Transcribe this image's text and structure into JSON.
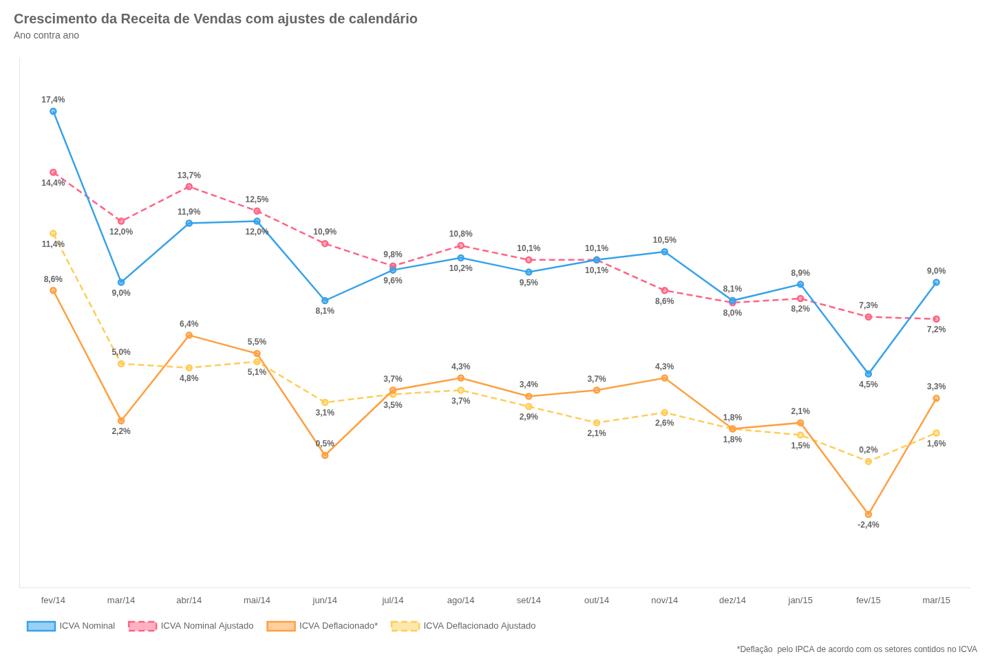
{
  "chart_data": {
    "type": "line",
    "title": "Crescimento da Receita de Vendas com ajustes de calendário",
    "subtitle": "Ano contra ano",
    "footnote": "*Deflação  pelo IPCA de acordo com os setores contidos no ICVA",
    "categories": [
      "fev/14",
      "mar/14",
      "abr/14",
      "mai/14",
      "jun/14",
      "jul/14",
      "ago/14",
      "set/14",
      "out/14",
      "nov/14",
      "dez/14",
      "jan/15",
      "fev/15",
      "mar/15"
    ],
    "series": [
      {
        "name": "ICVA Nominal",
        "line_style": "solid",
        "marker": "circle",
        "values": [
          17.4,
          9.0,
          11.9,
          12.0,
          8.1,
          9.6,
          10.2,
          9.5,
          10.1,
          10.5,
          8.1,
          8.9,
          4.5,
          9.0
        ],
        "value_labels": [
          "17,4%",
          "9,0%",
          "11,9%",
          "12,0%",
          "8,1%",
          "9,6%",
          "10,2%",
          "9,5%",
          "10,1%",
          "10,5%",
          "8,1%",
          "8,9%",
          "4,5%",
          "9,0%"
        ]
      },
      {
        "name": "ICVA Nominal Ajustado",
        "line_style": "dashed",
        "marker": "circle",
        "values": [
          14.4,
          12.0,
          13.7,
          12.5,
          10.9,
          9.8,
          10.8,
          10.1,
          10.1,
          8.6,
          8.0,
          8.2,
          7.3,
          7.2
        ],
        "value_labels": [
          "14,4%",
          "12,0%",
          "13,7%",
          "12,5%",
          "10,9%",
          "9,8%",
          "10,8%",
          "10,1%",
          "10,1%",
          "8,6%",
          "8,0%",
          "8,2%",
          "7,3%",
          "7,2%"
        ]
      },
      {
        "name": "ICVA Deflacionado*",
        "line_style": "solid",
        "marker": "circle",
        "values": [
          8.6,
          2.2,
          6.4,
          5.5,
          0.5,
          3.7,
          4.3,
          3.4,
          3.7,
          4.3,
          1.8,
          2.1,
          -2.4,
          3.3
        ],
        "value_labels": [
          "8,6%",
          "2,2%",
          "6,4%",
          "5,5%",
          "0,5%",
          "3,7%",
          "4,3%",
          "3,4%",
          "3,7%",
          "4,3%",
          "1,8%",
          "2,1%",
          "-2,4%",
          "3,3%"
        ]
      },
      {
        "name": "ICVA Deflacionado Ajustado",
        "line_style": "dashed",
        "marker": "circle",
        "values": [
          11.4,
          5.0,
          4.8,
          5.1,
          3.1,
          3.5,
          3.7,
          2.9,
          2.1,
          2.6,
          1.8,
          1.5,
          0.2,
          1.6
        ],
        "value_labels": [
          "11,4%",
          "5,0%",
          "4,8%",
          "5,1%",
          "3,1%",
          "3,5%",
          "3,7%",
          "2,9%",
          "2,1%",
          "2,6%",
          "1,8%",
          "1,5%",
          "0,2%",
          "1,6%"
        ]
      }
    ],
    "ylim": [
      -6,
      20
    ],
    "grid": false,
    "legend": "bottom",
    "data_labels": true,
    "tick_labels": "x"
  }
}
